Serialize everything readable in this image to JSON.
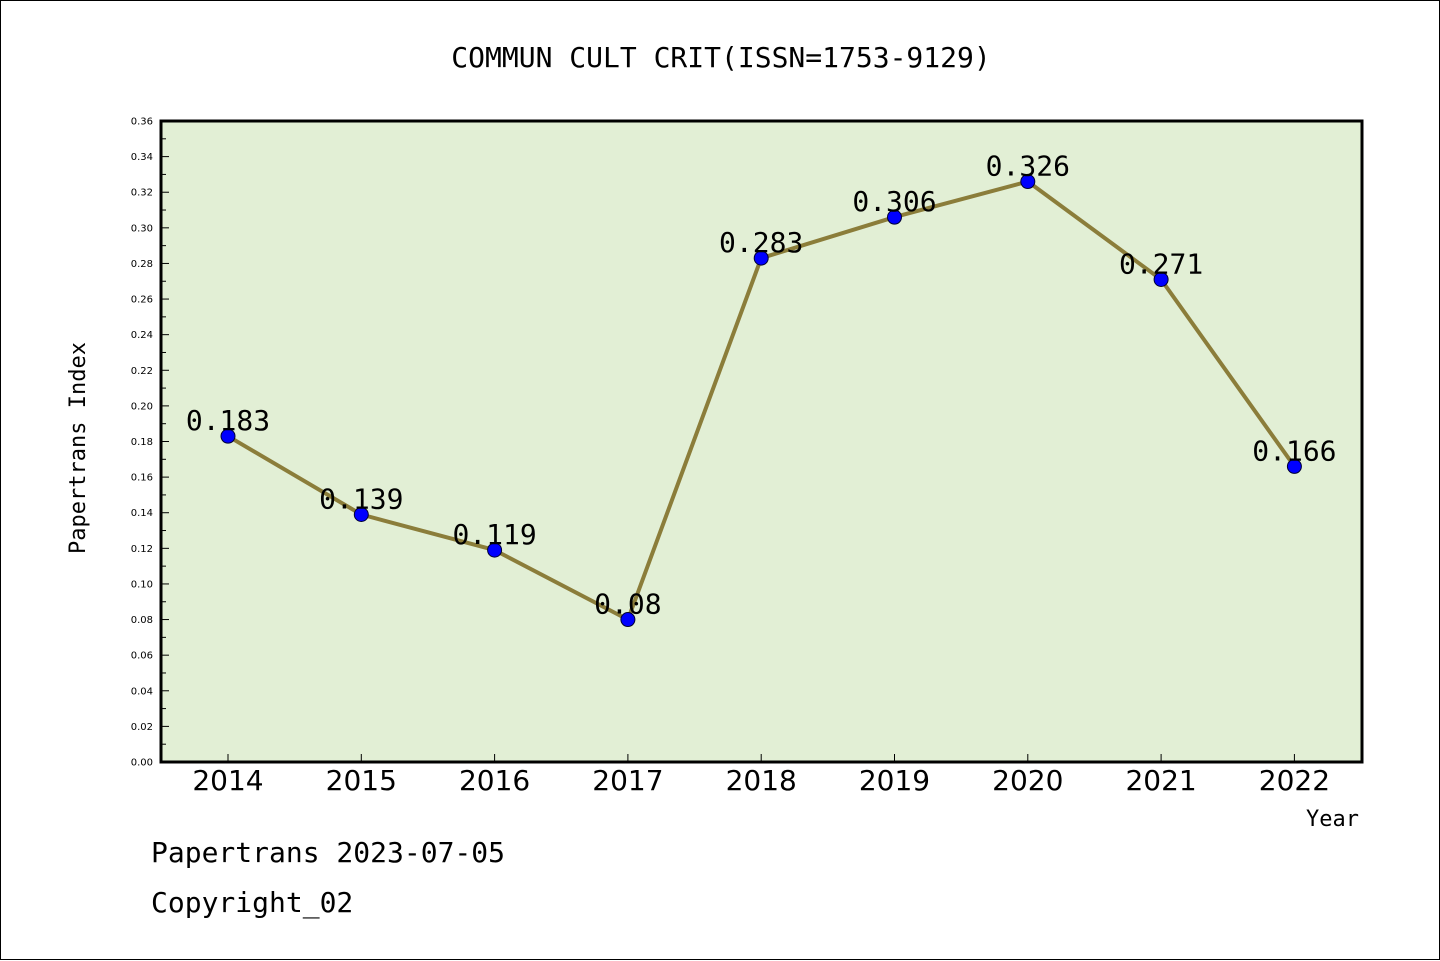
{
  "chart_data": {
    "type": "line",
    "title": "COMMUN CULT CRIT(ISSN=1753-9129)",
    "xlabel": "Year",
    "ylabel": "Papertrans Index",
    "categories": [
      "2014",
      "2015",
      "2016",
      "2017",
      "2018",
      "2019",
      "2020",
      "2021",
      "2022"
    ],
    "values": [
      0.183,
      0.139,
      0.119,
      0.08,
      0.283,
      0.306,
      0.326,
      0.271,
      0.166
    ],
    "data_labels": [
      "0.183",
      "0.139",
      "0.119",
      "0.08",
      "0.283",
      "0.306",
      "0.326",
      "0.271",
      "0.166"
    ],
    "ylim": [
      0,
      0.36
    ],
    "y_major_step": 0.02,
    "y_tick_labels": [
      "0.00",
      "0.02",
      "0.04",
      "0.06",
      "0.08",
      "0.10",
      "0.12",
      "0.14",
      "0.16",
      "0.18",
      "0.20",
      "0.22",
      "0.24",
      "0.26",
      "0.28",
      "0.30",
      "0.32",
      "0.34",
      "0.36"
    ],
    "grid": false,
    "legend": "none",
    "colors": {
      "plot_background": "#e2efd5",
      "line": "#8b7d3a",
      "marker": "#0000ff"
    }
  },
  "footer": {
    "line1": "Papertrans 2023-07-05",
    "line2": "Copyright_02"
  }
}
